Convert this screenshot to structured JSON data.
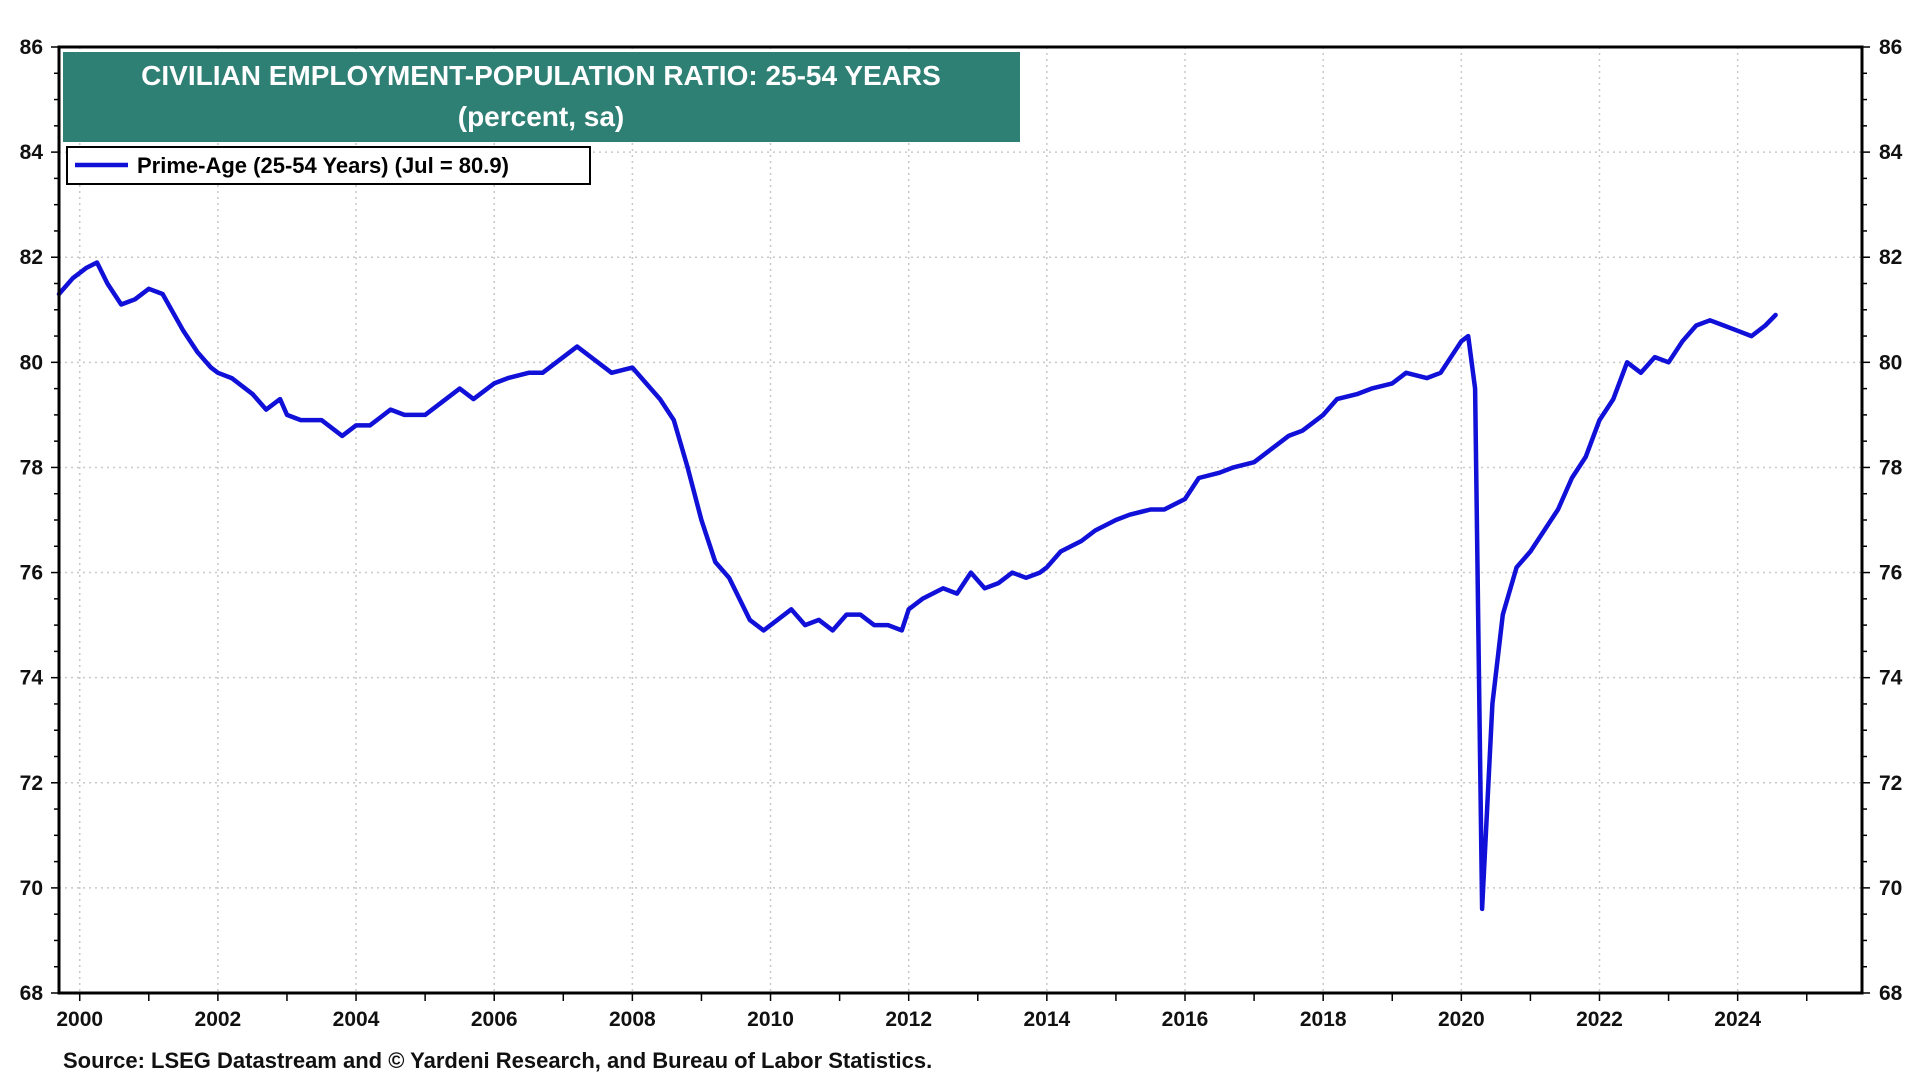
{
  "chart_data": {
    "type": "line",
    "title": "CIVILIAN EMPLOYMENT-POPULATION RATIO: 25-54 YEARS",
    "subtitle": "(percent, sa)",
    "source": "Source: LSEG Datastream and © Yardeni Research, and Bureau of Labor Statistics.",
    "xlabel": "",
    "ylabel": "",
    "xlim": [
      1999.7,
      2025.8
    ],
    "ylim": [
      68,
      86
    ],
    "x_ticks": [
      2000,
      2002,
      2004,
      2006,
      2008,
      2010,
      2012,
      2014,
      2016,
      2018,
      2020,
      2022,
      2024
    ],
    "x_tick_labels": [
      "2000",
      "2002",
      "2004",
      "2006",
      "2008",
      "2010",
      "2012",
      "2014",
      "2016",
      "2018",
      "2020",
      "2022",
      "2024"
    ],
    "y_ticks": [
      68,
      70,
      72,
      74,
      76,
      78,
      80,
      82,
      84,
      86
    ],
    "y_tick_labels": [
      "68",
      "70",
      "72",
      "74",
      "76",
      "78",
      "80",
      "82",
      "84",
      "86"
    ],
    "grid": true,
    "legend_position": "top-left",
    "colors": {
      "series": "#1010d8",
      "title_background": "#2e7f74",
      "frame": "#000000"
    },
    "series": [
      {
        "name": "Prime-Age (25-54 Years) (Jul  = 80.9)",
        "x": [
          1999.7,
          1999.9,
          2000.1,
          2000.25,
          2000.4,
          2000.6,
          2000.8,
          2001.0,
          2001.2,
          2001.5,
          2001.7,
          2001.9,
          2002.0,
          2002.2,
          2002.5,
          2002.7,
          2002.9,
          2003.0,
          2003.2,
          2003.5,
          2003.8,
          2004.0,
          2004.2,
          2004.5,
          2004.7,
          2005.0,
          2005.2,
          2005.5,
          2005.7,
          2006.0,
          2006.2,
          2006.5,
          2006.7,
          2007.0,
          2007.2,
          2007.5,
          2007.7,
          2008.0,
          2008.2,
          2008.4,
          2008.6,
          2008.8,
          2009.0,
          2009.2,
          2009.4,
          2009.7,
          2009.9,
          2010.1,
          2010.3,
          2010.5,
          2010.7,
          2010.9,
          2011.1,
          2011.3,
          2011.5,
          2011.7,
          2011.9,
          2012.0,
          2012.2,
          2012.5,
          2012.7,
          2012.9,
          2013.1,
          2013.3,
          2013.5,
          2013.7,
          2013.9,
          2014.0,
          2014.2,
          2014.5,
          2014.7,
          2015.0,
          2015.2,
          2015.5,
          2015.7,
          2016.0,
          2016.2,
          2016.5,
          2016.7,
          2017.0,
          2017.2,
          2017.5,
          2017.7,
          2018.0,
          2018.2,
          2018.5,
          2018.7,
          2019.0,
          2019.2,
          2019.5,
          2019.7,
          2019.9,
          2020.0,
          2020.1,
          2020.2,
          2020.3,
          2020.45,
          2020.6,
          2020.8,
          2021.0,
          2021.2,
          2021.4,
          2021.6,
          2021.8,
          2022.0,
          2022.2,
          2022.4,
          2022.6,
          2022.8,
          2023.0,
          2023.2,
          2023.4,
          2023.6,
          2023.8,
          2024.0,
          2024.2,
          2024.4,
          2024.55
        ],
        "values": [
          81.3,
          81.6,
          81.8,
          81.9,
          81.5,
          81.1,
          81.2,
          81.4,
          81.3,
          80.6,
          80.2,
          79.9,
          79.8,
          79.7,
          79.4,
          79.1,
          79.3,
          79.0,
          78.9,
          78.9,
          78.6,
          78.8,
          78.8,
          79.1,
          79.0,
          79.0,
          79.2,
          79.5,
          79.3,
          79.6,
          79.7,
          79.8,
          79.8,
          80.1,
          80.3,
          80.0,
          79.8,
          79.9,
          79.6,
          79.3,
          78.9,
          78.0,
          77.0,
          76.2,
          75.9,
          75.1,
          74.9,
          75.1,
          75.3,
          75.0,
          75.1,
          74.9,
          75.2,
          75.2,
          75.0,
          75.0,
          74.9,
          75.3,
          75.5,
          75.7,
          75.6,
          76.0,
          75.7,
          75.8,
          76.0,
          75.9,
          76.0,
          76.1,
          76.4,
          76.6,
          76.8,
          77.0,
          77.1,
          77.2,
          77.2,
          77.4,
          77.8,
          77.9,
          78.0,
          78.1,
          78.3,
          78.6,
          78.7,
          79.0,
          79.3,
          79.4,
          79.5,
          79.6,
          79.8,
          79.7,
          79.8,
          80.2,
          80.4,
          80.5,
          79.5,
          69.6,
          73.5,
          75.2,
          76.1,
          76.4,
          76.8,
          77.2,
          77.8,
          78.2,
          78.9,
          79.3,
          80.0,
          79.8,
          80.1,
          80.0,
          80.4,
          80.7,
          80.8,
          80.7,
          80.6,
          80.5,
          80.7,
          80.9
        ]
      }
    ]
  }
}
